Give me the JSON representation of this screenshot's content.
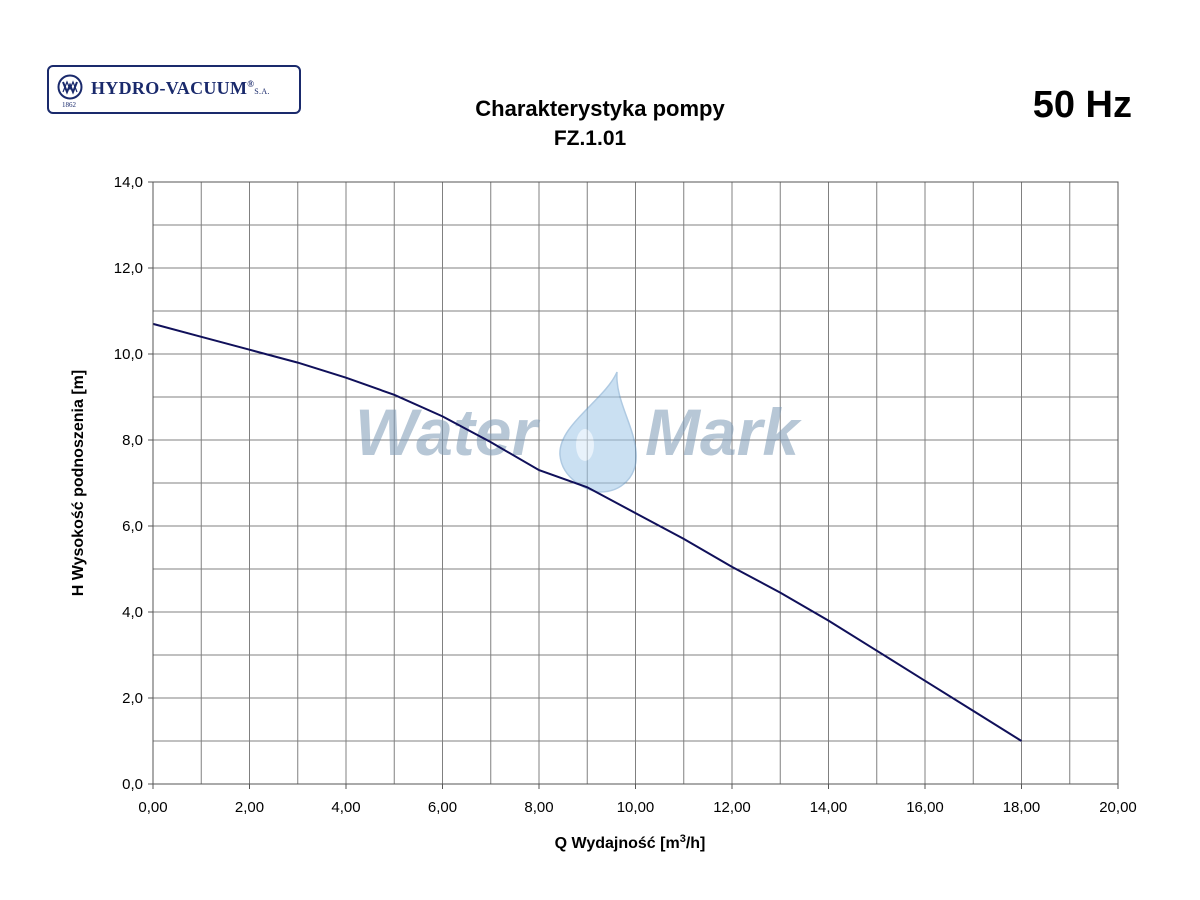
{
  "logo": {
    "name": "HYDRO-VACUUM",
    "registered": "®",
    "suffix": "S.A.",
    "year": "1862"
  },
  "watermark": {
    "text_left": "Water",
    "text_right": "Mark"
  },
  "colors": {
    "curve": "#10105a",
    "grid": "#808080",
    "logo": "#1a2a6c",
    "watermark": "#6f8fb0"
  },
  "chart_data": {
    "type": "line",
    "title": "Charakterystyka pompy",
    "subtitle": "FZ.1.01",
    "frequency_label": "50 Hz",
    "xlabel_prefix": "Q Wydajność [m",
    "xlabel_sup": "3",
    "xlabel_suffix": "/h]",
    "ylabel": "H  Wysokość podnoszenia [m]",
    "xlim": [
      0,
      20
    ],
    "ylim": [
      0,
      14
    ],
    "x_ticks": [
      0,
      2,
      4,
      6,
      8,
      10,
      12,
      14,
      16,
      18,
      20
    ],
    "x_tick_labels": [
      "0,00",
      "2,00",
      "4,00",
      "6,00",
      "8,00",
      "10,00",
      "12,00",
      "14,00",
      "16,00",
      "18,00",
      "20,00"
    ],
    "y_ticks": [
      0,
      2,
      4,
      6,
      8,
      10,
      12,
      14
    ],
    "y_tick_labels": [
      "0,0",
      "2,0",
      "4,0",
      "6,0",
      "8,0",
      "10,0",
      "12,0",
      "14,0"
    ],
    "x_minor_step": 1,
    "y_minor_step": 1,
    "grid": true,
    "series": [
      {
        "x": [
          0,
          1,
          2,
          3,
          4,
          5,
          6,
          7,
          8,
          9,
          10,
          11,
          12,
          13,
          14,
          15,
          16,
          17,
          18
        ],
        "y": [
          10.7,
          10.4,
          10.1,
          9.8,
          9.45,
          9.05,
          8.55,
          7.95,
          7.3,
          6.9,
          6.3,
          5.7,
          5.05,
          4.45,
          3.8,
          3.1,
          2.4,
          1.7,
          1.0
        ]
      }
    ]
  }
}
